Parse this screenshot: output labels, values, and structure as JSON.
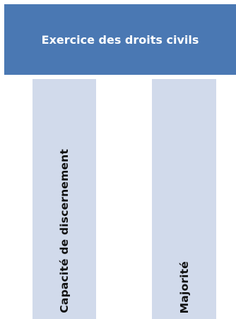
{
  "header": {
    "title": "Exercice des droits civils"
  },
  "columns": [
    {
      "label": "Capacité de discernement"
    },
    {
      "label": "Majorité"
    }
  ],
  "colors": {
    "header_bg": "#4a78b3",
    "column_bg": "#d1daeb",
    "header_text": "#ffffff"
  }
}
